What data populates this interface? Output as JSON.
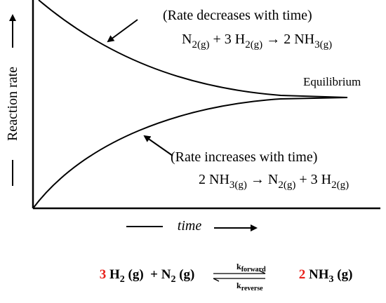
{
  "axes": {
    "y_label": "Reaction rate",
    "x_label": "time"
  },
  "forward_note": {
    "caption": "(Rate decreases with time)",
    "equation": [
      "N",
      "2(g)",
      " + 3 H",
      "2(g)",
      " → 2 NH",
      "3(g)"
    ]
  },
  "equilibrium_label": "Equilibrium",
  "reverse_note": {
    "caption": "(Rate increases with time)",
    "equation": [
      "2 NH",
      "3(g)",
      " → N",
      "2(g)",
      " + 3 H",
      "2(g)"
    ]
  },
  "overall_equation": {
    "left": [
      "3",
      " H",
      "2",
      " (g)  + N",
      "2",
      " (g)"
    ],
    "k_forward": [
      "k",
      "forward"
    ],
    "k_reverse": [
      "k",
      "reverse"
    ],
    "right": [
      "2",
      " NH",
      "3",
      " (g)"
    ]
  }
}
